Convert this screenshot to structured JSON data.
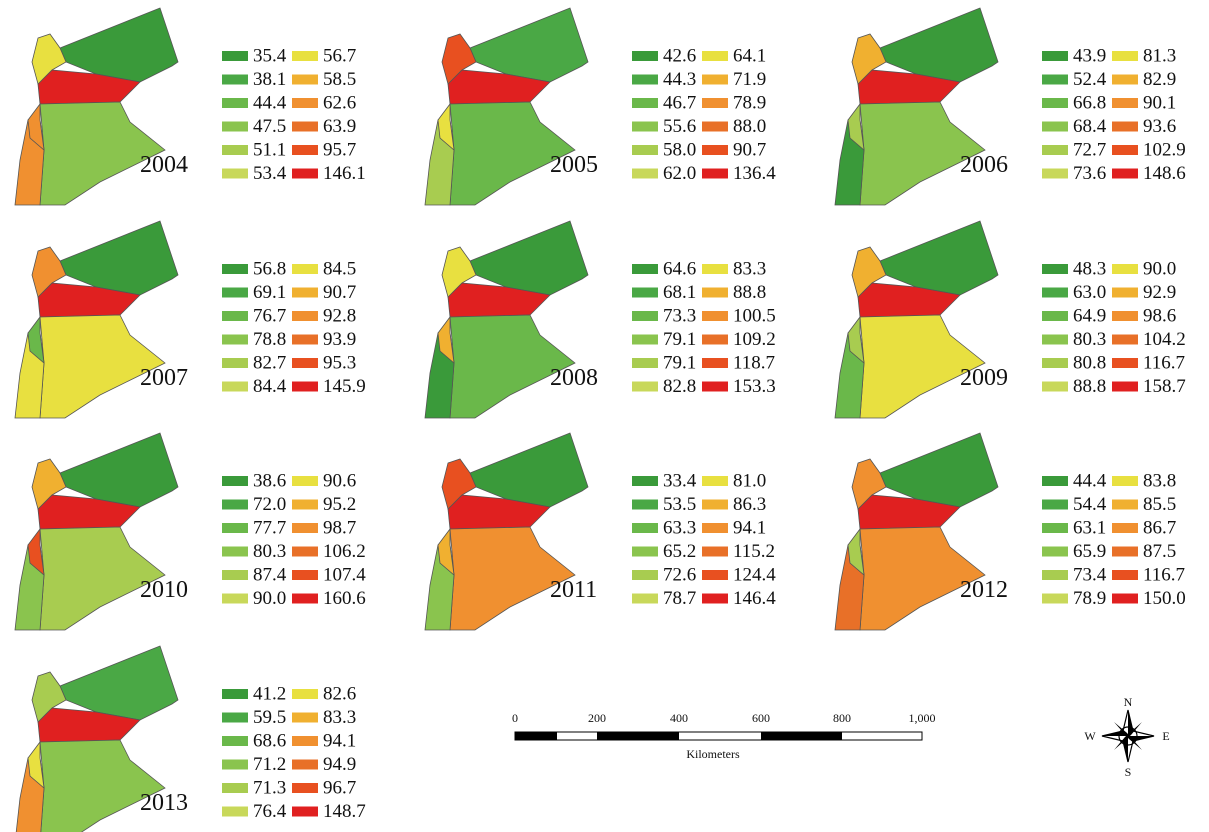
{
  "legend_colors": [
    "#3a9a3a",
    "#4aa845",
    "#6ab84a",
    "#8ac44e",
    "#a8cc50",
    "#c8d85a",
    "#e8e040",
    "#f0b030",
    "#f09030",
    "#e87028",
    "#e85020",
    "#e02020"
  ],
  "panels": [
    {
      "year": "2004",
      "legend": [
        "35.4",
        "38.1",
        "44.4",
        "47.5",
        "51.1",
        "53.4",
        "56.7",
        "58.5",
        "62.6",
        "63.9",
        "95.7",
        "146.1"
      ],
      "region_colors": [
        "#3a9a3a",
        "#e02020",
        "#e8e040",
        "#8ac44e",
        "#f09030",
        "#f09030"
      ]
    },
    {
      "year": "2005",
      "legend": [
        "42.6",
        "44.3",
        "46.7",
        "55.6",
        "58.0",
        "62.0",
        "64.1",
        "71.9",
        "78.9",
        "88.0",
        "90.7",
        "136.4"
      ],
      "region_colors": [
        "#4aa845",
        "#e02020",
        "#e85020",
        "#6ab84a",
        "#a8cc50",
        "#e8e040"
      ]
    },
    {
      "year": "2006",
      "legend": [
        "43.9",
        "52.4",
        "66.8",
        "68.4",
        "72.7",
        "73.6",
        "81.3",
        "82.9",
        "90.1",
        "93.6",
        "102.9",
        "148.6"
      ],
      "region_colors": [
        "#3a9a3a",
        "#e02020",
        "#f0b030",
        "#8ac44e",
        "#3a9a3a",
        "#a8cc50"
      ]
    },
    {
      "year": "2007",
      "legend": [
        "56.8",
        "69.1",
        "76.7",
        "78.8",
        "82.7",
        "84.4",
        "84.5",
        "90.7",
        "92.8",
        "93.9",
        "95.3",
        "145.9"
      ],
      "region_colors": [
        "#3a9a3a",
        "#e02020",
        "#f09030",
        "#e8e040",
        "#e8e040",
        "#6ab84a"
      ]
    },
    {
      "year": "2008",
      "legend": [
        "64.6",
        "68.1",
        "73.3",
        "79.1",
        "79.1",
        "82.8",
        "83.3",
        "88.8",
        "100.5",
        "109.2",
        "118.7",
        "153.3"
      ],
      "region_colors": [
        "#3a9a3a",
        "#e02020",
        "#e8e040",
        "#6ab84a",
        "#3a9a3a",
        "#f0b030"
      ]
    },
    {
      "year": "2009",
      "legend": [
        "48.3",
        "63.0",
        "64.9",
        "80.3",
        "80.8",
        "88.8",
        "90.0",
        "92.9",
        "98.6",
        "104.2",
        "116.7",
        "158.7"
      ],
      "region_colors": [
        "#3a9a3a",
        "#e02020",
        "#f0b030",
        "#e8e040",
        "#6ab84a",
        "#a8cc50"
      ]
    },
    {
      "year": "2010",
      "legend": [
        "38.6",
        "72.0",
        "77.7",
        "80.3",
        "87.4",
        "90.0",
        "90.6",
        "95.2",
        "98.7",
        "106.2",
        "107.4",
        "160.6"
      ],
      "region_colors": [
        "#3a9a3a",
        "#e02020",
        "#f0b030",
        "#a8cc50",
        "#8ac44e",
        "#e85020"
      ]
    },
    {
      "year": "2011",
      "legend": [
        "33.4",
        "53.5",
        "63.3",
        "65.2",
        "72.6",
        "78.7",
        "81.0",
        "86.3",
        "94.1",
        "115.2",
        "124.4",
        "146.4"
      ],
      "region_colors": [
        "#3a9a3a",
        "#e02020",
        "#e85020",
        "#f09030",
        "#8ac44e",
        "#f0b030"
      ]
    },
    {
      "year": "2012",
      "legend": [
        "44.4",
        "54.4",
        "63.1",
        "65.9",
        "73.4",
        "78.9",
        "83.8",
        "85.5",
        "86.7",
        "87.5",
        "116.7",
        "150.0"
      ],
      "region_colors": [
        "#3a9a3a",
        "#e02020",
        "#f09030",
        "#f09030",
        "#e87028",
        "#a8cc50"
      ]
    },
    {
      "year": "2013",
      "legend": [
        "41.2",
        "59.5",
        "68.6",
        "71.2",
        "71.3",
        "76.4",
        "82.6",
        "83.3",
        "94.1",
        "94.9",
        "96.7",
        "148.7"
      ],
      "region_colors": [
        "#4aa845",
        "#e02020",
        "#a8cc50",
        "#8ac44e",
        "#f09030",
        "#e8e040"
      ]
    }
  ],
  "scale_bar": {
    "ticks": [
      "0",
      "200",
      "400",
      "600",
      "800",
      "1,000"
    ],
    "unit": "Kilometers"
  },
  "compass": {
    "n": "N",
    "e": "E",
    "s": "S",
    "w": "W"
  }
}
